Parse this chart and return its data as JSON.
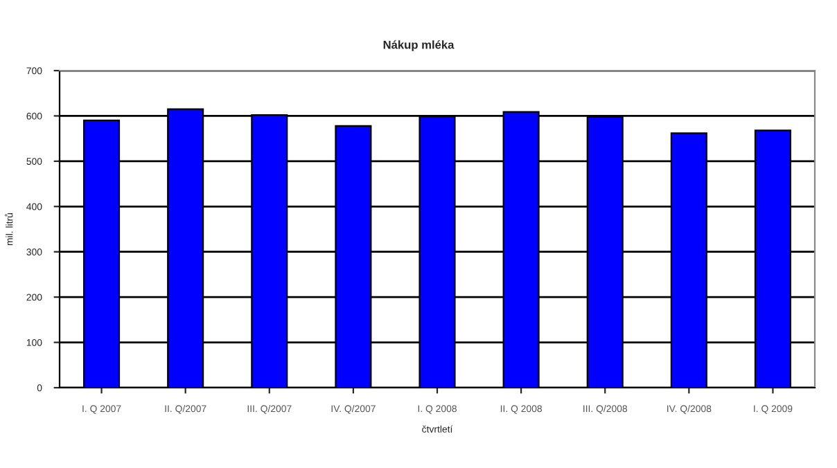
{
  "chart_data": {
    "type": "bar",
    "title": "Nákup mléka",
    "xlabel": "čtvrtletí",
    "ylabel": "mil. litrů",
    "categories": [
      "I. Q 2007",
      "II. Q/2007",
      "III. Q/2007",
      "IV. Q/2007",
      "I. Q 2008",
      "II. Q 2008",
      "III. Q/2008",
      "IV. Q/2008",
      "I. Q 2009"
    ],
    "values": [
      590,
      615,
      602,
      578,
      599,
      609,
      598,
      562,
      568
    ],
    "color": "#0000ff",
    "ylim": [
      0,
      700
    ],
    "yticks": [
      0,
      100,
      200,
      300,
      400,
      500,
      600,
      700
    ],
    "grid": "y",
    "legend": false
  }
}
